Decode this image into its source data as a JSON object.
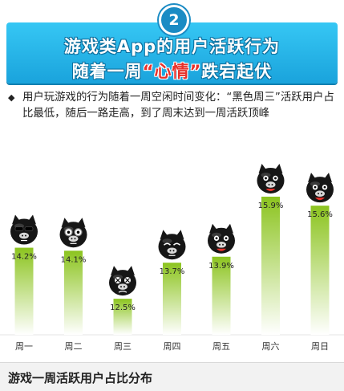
{
  "banner": {
    "badge": "2",
    "line1": "游戏类App的用户活跃行为",
    "line2_prefix": "随着一周",
    "line2_highlight": "“心情”",
    "line2_suffix": "跌宕起伏"
  },
  "description": {
    "bullet": "◆",
    "text": "用户玩游戏的行为随着一周空闲时间变化：“黑色周三”活跃用户占比最低，随后一路走高，到了周末达到一周活跃顶峰"
  },
  "chart_data": {
    "type": "bar",
    "title": "游戏一周活跃用户占比分布",
    "categories": [
      "周一",
      "周二",
      "周三",
      "周四",
      "周五",
      "周六",
      "周日"
    ],
    "values": [
      14.2,
      14.1,
      12.5,
      13.7,
      13.9,
      15.9,
      15.6
    ],
    "value_labels": [
      "14.2%",
      "14.1%",
      "12.5%",
      "13.7%",
      "13.9%",
      "15.9%",
      "15.6%"
    ],
    "unit": "%",
    "ylim": [
      11.3,
      16.3
    ],
    "grid": false,
    "bar_color": "#8cc41f",
    "icons": [
      "sunglasses-pig-icon",
      "glasses-pig-icon",
      "dizzy-pig-icon",
      "worried-pig-icon",
      "happy-pig-icon",
      "laughing-pig-icon",
      "grinning-pig-icon"
    ]
  },
  "footer": {
    "title": "游戏一周活跃用户占比分布"
  }
}
